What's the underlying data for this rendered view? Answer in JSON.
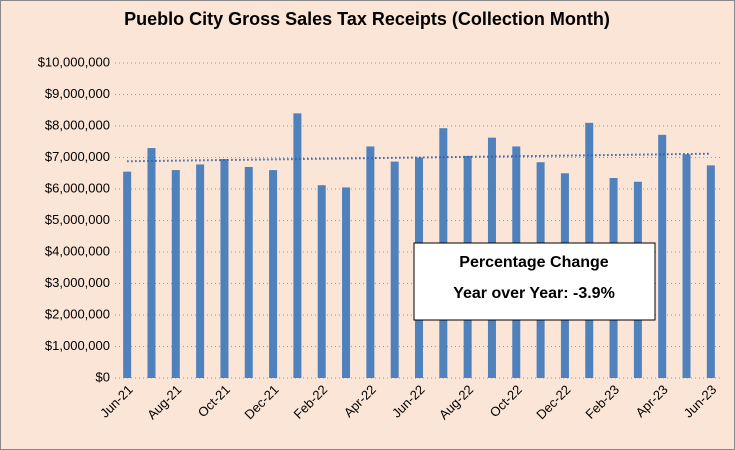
{
  "chart_data": {
    "type": "bar",
    "title": "Pueblo City Gross Sales Tax Receipts (Collection Month)",
    "categories": [
      "Jun-21",
      null,
      "Aug-21",
      null,
      "Oct-21",
      null,
      "Dec-21",
      null,
      "Feb-22",
      null,
      "Apr-22",
      null,
      "Jun-22",
      null,
      "Aug-22",
      null,
      "Oct-22",
      null,
      "Dec-22",
      null,
      "Feb-23",
      null,
      "Apr-23",
      null,
      "Jun-23"
    ],
    "values": [
      6550000,
      7300000,
      6600000,
      6780000,
      6950000,
      6700000,
      6600000,
      8400000,
      6120000,
      6050000,
      7350000,
      6870000,
      7000000,
      7930000,
      7050000,
      7630000,
      7350000,
      6850000,
      6500000,
      8100000,
      6350000,
      6230000,
      7720000,
      7100000,
      6750000
    ],
    "color": "#4f81bd",
    "trendline": [
      6880000,
      7120000
    ],
    "ylim": [
      0,
      10000000
    ],
    "yticks": [
      {
        "value": 0,
        "label": "$0"
      },
      {
        "value": 1000000,
        "label": "$1,000,000"
      },
      {
        "value": 2000000,
        "label": "$2,000,000"
      },
      {
        "value": 3000000,
        "label": "$3,000,000"
      },
      {
        "value": 4000000,
        "label": "$4,000,000"
      },
      {
        "value": 5000000,
        "label": "$5,000,000"
      },
      {
        "value": 6000000,
        "label": "$6,000,000"
      },
      {
        "value": 7000000,
        "label": "$7,000,000"
      },
      {
        "value": 8000000,
        "label": "$8,000,000"
      },
      {
        "value": 9000000,
        "label": "$9,000,000"
      },
      {
        "value": 10000000,
        "label": "$10,000,000"
      }
    ],
    "grid": true,
    "annotations": [
      "Percentage Change",
      "Year over Year: -3.9%"
    ]
  }
}
